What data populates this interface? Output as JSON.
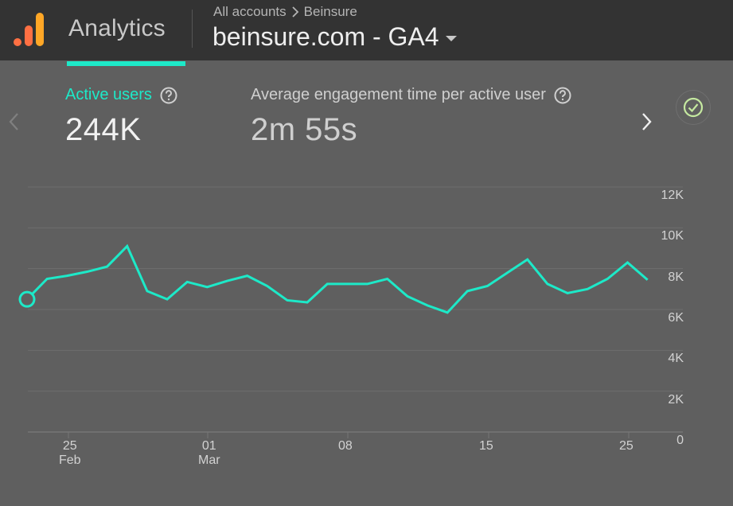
{
  "header": {
    "product_name": "Analytics",
    "breadcrumb": [
      "All accounts",
      "Beinsure"
    ],
    "property_name": "beinsure.com - GA4",
    "logo_icon": "analytics-bars-logo",
    "logo_colors": [
      "#f57c00",
      "#ff7043",
      "#ffa726"
    ]
  },
  "metrics": [
    {
      "label": "Active users",
      "value": "244K",
      "selected": true,
      "help_icon": "question-circle-icon"
    },
    {
      "label": "Average engagement time per active user",
      "value": "2m 55s",
      "selected": false,
      "help_icon": "question-circle-icon"
    }
  ],
  "nav": {
    "prev_icon": "chevron-left-icon",
    "next_icon": "chevron-right-icon",
    "status_icon": "check-circle-icon"
  },
  "colors": {
    "accent": "#1de9c8",
    "background": "#5f5f5f",
    "topbar": "#333333",
    "status_check": "#c5e9a0"
  },
  "chart_data": {
    "type": "line",
    "title": "Active users",
    "xlabel": "",
    "ylabel": "",
    "ylim": [
      0,
      12000
    ],
    "y_ticks": [
      "12K",
      "10K",
      "8K",
      "6K",
      "4K",
      "2K",
      "0"
    ],
    "y_tick_values": [
      12000,
      10000,
      8000,
      6000,
      4000,
      2000,
      0
    ],
    "x_ticks": [
      {
        "day": "25",
        "month": "Feb"
      },
      {
        "day": "01",
        "month": "Mar"
      },
      {
        "day": "08",
        "month": ""
      },
      {
        "day": "15",
        "month": ""
      },
      {
        "day": "25",
        "month": ""
      }
    ],
    "grid": true,
    "y_axis_position": "right",
    "series": [
      {
        "name": "Active users",
        "color": "#1de9c8",
        "x": [
          "Feb 23",
          "Feb 24",
          "Feb 25",
          "Feb 26",
          "Feb 27",
          "Feb 28",
          "Feb 29",
          "Mar 01",
          "Mar 02",
          "Mar 03",
          "Mar 04",
          "Mar 05",
          "Mar 06",
          "Mar 07",
          "Mar 08",
          "Mar 09",
          "Mar 10",
          "Mar 11",
          "Mar 12",
          "Mar 13",
          "Mar 14",
          "Mar 15",
          "Mar 16",
          "Mar 17",
          "Mar 18",
          "Mar 19",
          "Mar 20",
          "Mar 21",
          "Mar 22",
          "Mar 23",
          "Mar 24",
          "Mar 25"
        ],
        "values": [
          6500,
          7500,
          7650,
          7850,
          8100,
          9100,
          6900,
          6500,
          7350,
          7100,
          7400,
          7650,
          7150,
          6450,
          6350,
          7250,
          7250,
          7250,
          7500,
          6650,
          6200,
          5850,
          6900,
          7150,
          7800,
          8450,
          7250,
          6800,
          7000,
          7500,
          8300,
          7450
        ]
      }
    ]
  }
}
